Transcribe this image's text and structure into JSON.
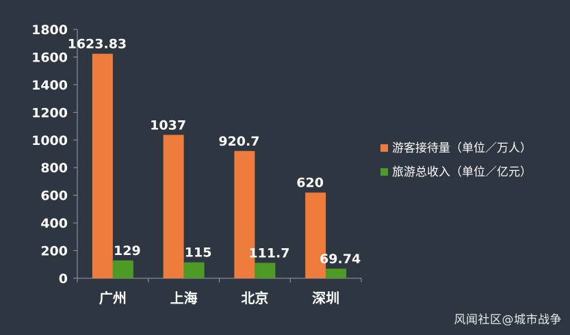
{
  "chart_data": {
    "type": "bar",
    "categories": [
      "广州",
      "上海",
      "北京",
      "深圳"
    ],
    "series": [
      {
        "name": "游客接待量（单位／万人）",
        "values": [
          1623.83,
          1037,
          920.7,
          620
        ],
        "labels": [
          "1623.83",
          "1037",
          "920.7",
          "620"
        ],
        "color": "#ee7d3d"
      },
      {
        "name": "旅游总收入（单位／亿元）",
        "values": [
          129,
          115,
          111.7,
          69.74
        ],
        "labels": [
          "129",
          "115",
          "111.7",
          "69.74"
        ],
        "color": "#4e9a27"
      }
    ],
    "ylim": [
      0,
      1800
    ],
    "yticks": [
      "0",
      "200",
      "400",
      "600",
      "800",
      "1000",
      "1200",
      "1400",
      "1600",
      "1800"
    ],
    "legend_position": "right",
    "grid": false
  },
  "watermark": "风闻社区@城市战争",
  "colors": {
    "background": "#2e3641",
    "axis": "#9aa0a6",
    "text": "#ffffff"
  }
}
